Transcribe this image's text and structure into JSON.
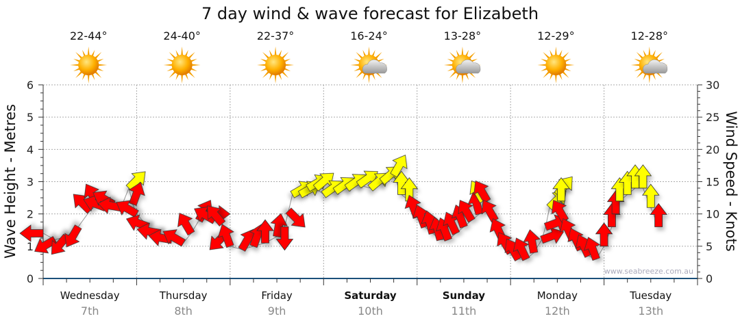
{
  "chart_data": {
    "type": "scatter",
    "title": "7 day wind & wave forecast for Elizabeth",
    "ylabel_left": "Wave Height - Metres",
    "ylabel_right": "Wind Speed - Knots",
    "ylim_left": [
      0,
      6
    ],
    "ylim_right": [
      0,
      30
    ],
    "left_ticks": [
      "0",
      "1",
      "2",
      "3",
      "4",
      "5",
      "6"
    ],
    "right_ticks": [
      "0",
      "5",
      "10",
      "15",
      "20",
      "25",
      "30"
    ],
    "grid": true,
    "watermark": "www.seabreeze.com.au",
    "days": [
      {
        "name": "Wednesday",
        "date": "7th",
        "temp": "22-44°",
        "icon": "sunny",
        "bold": false
      },
      {
        "name": "Thursday",
        "date": "8th",
        "temp": "24-40°",
        "icon": "sunny",
        "bold": false
      },
      {
        "name": "Friday",
        "date": "9th",
        "temp": "22-37°",
        "icon": "sunny",
        "bold": false
      },
      {
        "name": "Saturday",
        "date": "10th",
        "temp": "16-24°",
        "icon": "partly-cloudy",
        "bold": true
      },
      {
        "name": "Sunday",
        "date": "11th",
        "temp": "13-28°",
        "icon": "partly-cloudy",
        "bold": true
      },
      {
        "name": "Monday",
        "date": "12th",
        "temp": "12-29°",
        "icon": "sunny",
        "bold": false
      },
      {
        "name": "Tuesday",
        "date": "13th",
        "temp": "12-28°",
        "icon": "partly-cloudy",
        "bold": false
      }
    ],
    "colors": {
      "r": "#ff0000",
      "y": "#ffff00"
    },
    "wind_columns": [
      "hour",
      "knots",
      "arrow_direction_deg",
      "color"
    ],
    "wind": [
      [
        0,
        7,
        270,
        "r"
      ],
      [
        3,
        6,
        240,
        "r"
      ],
      [
        6,
        6.5,
        220,
        "r"
      ],
      [
        9,
        8,
        210,
        "r"
      ],
      [
        12,
        10.5,
        315,
        "r"
      ],
      [
        14,
        11.5,
        330,
        "r"
      ],
      [
        16,
        11,
        290,
        "r"
      ],
      [
        18,
        11.5,
        300,
        "r"
      ],
      [
        20,
        11,
        280,
        "r"
      ],
      [
        22,
        14,
        45,
        "y"
      ],
      [
        23,
        11.5,
        20,
        "r"
      ],
      [
        24,
        10,
        300,
        "r"
      ],
      [
        27,
        8,
        290,
        "r"
      ],
      [
        30,
        7,
        280,
        "r"
      ],
      [
        33,
        6,
        280,
        "r"
      ],
      [
        36,
        5.5,
        300,
        "r"
      ],
      [
        38,
        7,
        330,
        "r"
      ],
      [
        40,
        9,
        30,
        "r"
      ],
      [
        42,
        10,
        90,
        "r"
      ],
      [
        44,
        9,
        300,
        "r"
      ],
      [
        46,
        8.5,
        320,
        "r"
      ],
      [
        47,
        7,
        225,
        "r"
      ],
      [
        48,
        5,
        340,
        "r"
      ],
      [
        51,
        4.5,
        30,
        "r"
      ],
      [
        54,
        5,
        20,
        "r"
      ],
      [
        57,
        5.5,
        0,
        "r"
      ],
      [
        60,
        6.5,
        10,
        "r"
      ],
      [
        62,
        8,
        180,
        "r"
      ],
      [
        63,
        10.5,
        135,
        "r"
      ],
      [
        64,
        13,
        60,
        "y"
      ],
      [
        66,
        13,
        60,
        "y"
      ],
      [
        68,
        14,
        60,
        "y"
      ],
      [
        70,
        14,
        50,
        "y"
      ],
      [
        72,
        13,
        55,
        "y"
      ],
      [
        75,
        13.5,
        55,
        "y"
      ],
      [
        78,
        14,
        55,
        "y"
      ],
      [
        81,
        14.5,
        55,
        "y"
      ],
      [
        84,
        14,
        50,
        "y"
      ],
      [
        87,
        15,
        50,
        "y"
      ],
      [
        90,
        16,
        30,
        "y"
      ],
      [
        92,
        13,
        0,
        "y"
      ],
      [
        94,
        12,
        0,
        "y"
      ],
      [
        96,
        9.5,
        340,
        "r"
      ],
      [
        98,
        8,
        340,
        "r"
      ],
      [
        100,
        7,
        345,
        "r"
      ],
      [
        102,
        6,
        345,
        "r"
      ],
      [
        104,
        6,
        340,
        "r"
      ],
      [
        106,
        7,
        335,
        "r"
      ],
      [
        108,
        8,
        340,
        "r"
      ],
      [
        110,
        9,
        330,
        "r"
      ],
      [
        112,
        10,
        345,
        "r"
      ],
      [
        113,
        12,
        330,
        "y"
      ],
      [
        114,
        12,
        330,
        "r"
      ],
      [
        116,
        9,
        330,
        "r"
      ],
      [
        118,
        6,
        335,
        "r"
      ],
      [
        120,
        4,
        330,
        "r"
      ],
      [
        122,
        3,
        330,
        "r"
      ],
      [
        124,
        3,
        335,
        "r"
      ],
      [
        126,
        4,
        350,
        "r"
      ],
      [
        128,
        6,
        70,
        "r"
      ],
      [
        129,
        8,
        70,
        "r"
      ],
      [
        130,
        11,
        45,
        "y"
      ],
      [
        132,
        13,
        40,
        "y"
      ],
      [
        133,
        12,
        0,
        "y"
      ],
      [
        134,
        9,
        330,
        "r"
      ],
      [
        136,
        6,
        335,
        "r"
      ],
      [
        138,
        4.5,
        335,
        "r"
      ],
      [
        140,
        3.5,
        335,
        "r"
      ],
      [
        142,
        3,
        340,
        "r"
      ],
      [
        144,
        5,
        0,
        "r"
      ],
      [
        146,
        8,
        0,
        "r"
      ],
      [
        147,
        10,
        0,
        "r"
      ],
      [
        148,
        12,
        0,
        "y"
      ],
      [
        150,
        13,
        0,
        "y"
      ],
      [
        152,
        14,
        0,
        "y"
      ],
      [
        154,
        14,
        0,
        "y"
      ],
      [
        156,
        11,
        0,
        "y"
      ],
      [
        158,
        8,
        0,
        "r"
      ]
    ]
  }
}
